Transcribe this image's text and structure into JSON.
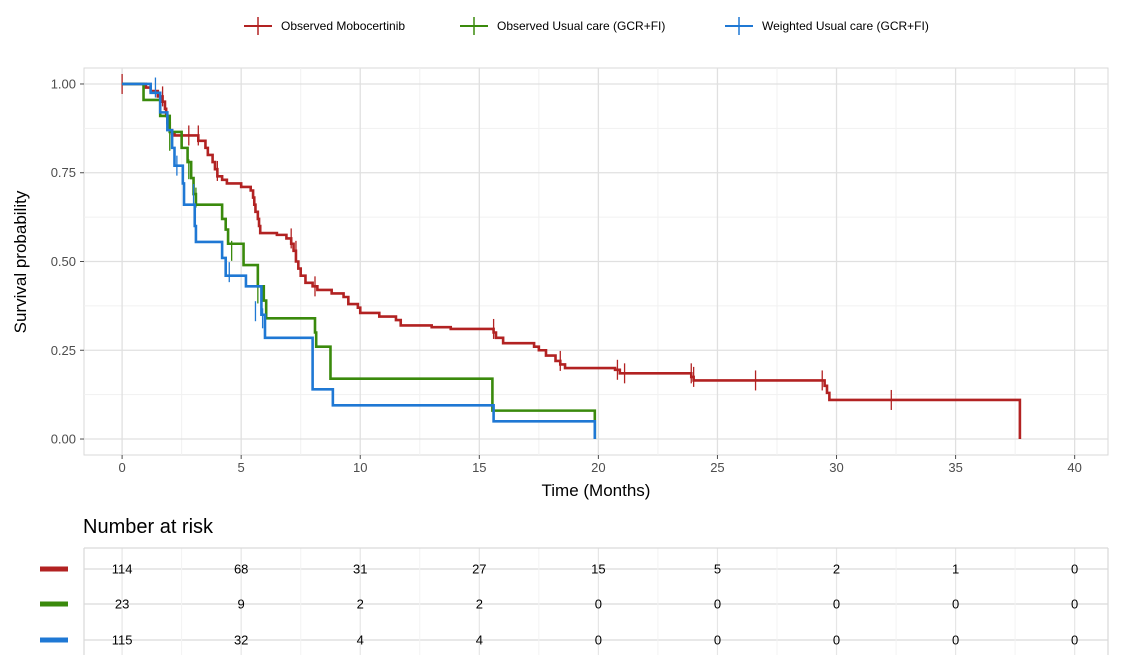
{
  "chart_data": {
    "type": "line",
    "subtype": "kaplan-meier step curve",
    "xlabel": "Time (Months)",
    "ylabel": "Survival probability",
    "xlim": [
      -1.6,
      41.4
    ],
    "ylim": [
      -0.045,
      1.045
    ],
    "xticks": [
      0,
      5,
      10,
      15,
      20,
      25,
      30,
      35,
      40
    ],
    "yticks": [
      0.0,
      0.25,
      0.5,
      0.75,
      1.0
    ],
    "ytick_labels": [
      "0.00",
      "0.25",
      "0.50",
      "0.75",
      "1.00"
    ],
    "grid": true,
    "legend_position": "top",
    "series": [
      {
        "name": "Observed Mobocertinib",
        "color": "#b22222",
        "steps": [
          [
            0,
            1.0
          ],
          [
            1.0,
            0.99
          ],
          [
            1.2,
            0.98
          ],
          [
            1.5,
            0.965
          ],
          [
            1.7,
            0.95
          ],
          [
            1.8,
            0.93
          ],
          [
            1.85,
            0.91
          ],
          [
            1.9,
            0.89
          ],
          [
            2.0,
            0.87
          ],
          [
            2.1,
            0.86
          ],
          [
            2.2,
            0.855
          ],
          [
            3.2,
            0.84
          ],
          [
            3.5,
            0.82
          ],
          [
            3.6,
            0.8
          ],
          [
            3.8,
            0.78
          ],
          [
            3.9,
            0.76
          ],
          [
            4.0,
            0.74
          ],
          [
            4.2,
            0.73
          ],
          [
            4.4,
            0.72
          ],
          [
            5.0,
            0.71
          ],
          [
            5.4,
            0.7
          ],
          [
            5.5,
            0.68
          ],
          [
            5.55,
            0.66
          ],
          [
            5.6,
            0.64
          ],
          [
            5.7,
            0.62
          ],
          [
            5.75,
            0.6
          ],
          [
            5.8,
            0.58
          ],
          [
            6.5,
            0.575
          ],
          [
            6.9,
            0.565
          ],
          [
            7.1,
            0.55
          ],
          [
            7.2,
            0.53
          ],
          [
            7.3,
            0.5
          ],
          [
            7.4,
            0.48
          ],
          [
            7.5,
            0.46
          ],
          [
            7.7,
            0.44
          ],
          [
            8.0,
            0.43
          ],
          [
            8.2,
            0.42
          ],
          [
            8.8,
            0.41
          ],
          [
            9.3,
            0.4
          ],
          [
            9.5,
            0.38
          ],
          [
            9.9,
            0.37
          ],
          [
            10.0,
            0.355
          ],
          [
            10.8,
            0.345
          ],
          [
            11.5,
            0.335
          ],
          [
            11.7,
            0.32
          ],
          [
            13.0,
            0.315
          ],
          [
            13.8,
            0.31
          ],
          [
            15.6,
            0.3
          ],
          [
            15.7,
            0.285
          ],
          [
            16.0,
            0.27
          ],
          [
            17.3,
            0.26
          ],
          [
            17.5,
            0.25
          ],
          [
            17.8,
            0.235
          ],
          [
            18.2,
            0.22
          ],
          [
            18.4,
            0.21
          ],
          [
            18.6,
            0.2
          ],
          [
            20.7,
            0.195
          ],
          [
            20.9,
            0.185
          ],
          [
            23.9,
            0.175
          ],
          [
            24.0,
            0.165
          ],
          [
            29.5,
            0.15
          ],
          [
            29.6,
            0.13
          ],
          [
            29.7,
            0.11
          ],
          [
            37.7,
            0.0
          ]
        ],
        "end": 37.7,
        "censor_marks": [
          [
            0,
            1.0
          ],
          [
            1.7,
            0.965
          ],
          [
            2.8,
            0.855
          ],
          [
            3.2,
            0.855
          ],
          [
            4.0,
            0.755
          ],
          [
            7.1,
            0.565
          ],
          [
            7.3,
            0.53
          ],
          [
            8.1,
            0.43
          ],
          [
            15.6,
            0.31
          ],
          [
            18.4,
            0.22
          ],
          [
            20.8,
            0.195
          ],
          [
            21.1,
            0.185
          ],
          [
            23.9,
            0.185
          ],
          [
            24.0,
            0.175
          ],
          [
            26.6,
            0.165
          ],
          [
            29.4,
            0.165
          ],
          [
            32.3,
            0.11
          ]
        ]
      },
      {
        "name": "Observed Usual care (GCR+FI)",
        "color": "#3a8a0c",
        "steps": [
          [
            0,
            1.0
          ],
          [
            0.9,
            0.955
          ],
          [
            1.6,
            0.91
          ],
          [
            2.0,
            0.865
          ],
          [
            2.5,
            0.82
          ],
          [
            2.75,
            0.78
          ],
          [
            2.9,
            0.735
          ],
          [
            3.0,
            0.69
          ],
          [
            3.1,
            0.66
          ],
          [
            4.2,
            0.62
          ],
          [
            4.35,
            0.59
          ],
          [
            4.45,
            0.55
          ],
          [
            5.1,
            0.49
          ],
          [
            5.7,
            0.43
          ],
          [
            5.95,
            0.39
          ],
          [
            6.05,
            0.34
          ],
          [
            8.1,
            0.3
          ],
          [
            8.15,
            0.26
          ],
          [
            8.75,
            0.17
          ],
          [
            15.55,
            0.08
          ],
          [
            19.85,
            0.0
          ]
        ],
        "end": 19.85,
        "censor_marks": [
          [
            2.0,
            0.84
          ],
          [
            2.8,
            0.76
          ],
          [
            3.1,
            0.68
          ],
          [
            4.6,
            0.53
          ],
          [
            5.7,
            0.41
          ]
        ]
      },
      {
        "name": "Weighted Usual care (GCR+FI)",
        "color": "#1f78d4",
        "steps": [
          [
            0,
            1.0
          ],
          [
            1.2,
            0.975
          ],
          [
            1.6,
            0.92
          ],
          [
            1.9,
            0.87
          ],
          [
            2.1,
            0.82
          ],
          [
            2.2,
            0.77
          ],
          [
            2.55,
            0.72
          ],
          [
            2.6,
            0.66
          ],
          [
            3.05,
            0.6
          ],
          [
            3.1,
            0.555
          ],
          [
            4.2,
            0.51
          ],
          [
            4.35,
            0.46
          ],
          [
            5.2,
            0.43
          ],
          [
            5.85,
            0.35
          ],
          [
            6.0,
            0.285
          ],
          [
            8.0,
            0.14
          ],
          [
            8.85,
            0.095
          ],
          [
            15.6,
            0.05
          ],
          [
            19.85,
            0.0
          ]
        ],
        "end": 19.85,
        "censor_marks": [
          [
            1.4,
            0.99
          ],
          [
            2.3,
            0.77
          ],
          [
            3.0,
            0.69
          ],
          [
            4.5,
            0.47
          ],
          [
            5.6,
            0.36
          ],
          [
            5.9,
            0.34
          ]
        ]
      }
    ],
    "risk_table": {
      "title": "Number at risk",
      "times": [
        0,
        5,
        10,
        15,
        20,
        25,
        30,
        35,
        40
      ],
      "rows": [
        {
          "color": "#b22222",
          "values": [
            "114",
            "68",
            "31",
            "27",
            "15",
            "5",
            "2",
            "1",
            "0"
          ]
        },
        {
          "color": "#3a8a0c",
          "values": [
            "23",
            "9",
            "2",
            "2",
            "0",
            "0",
            "0",
            "0",
            "0"
          ]
        },
        {
          "color": "#1f78d4",
          "values": [
            "115",
            "32",
            "4",
            "4",
            "0",
            "0",
            "0",
            "0",
            "0"
          ]
        }
      ]
    }
  }
}
